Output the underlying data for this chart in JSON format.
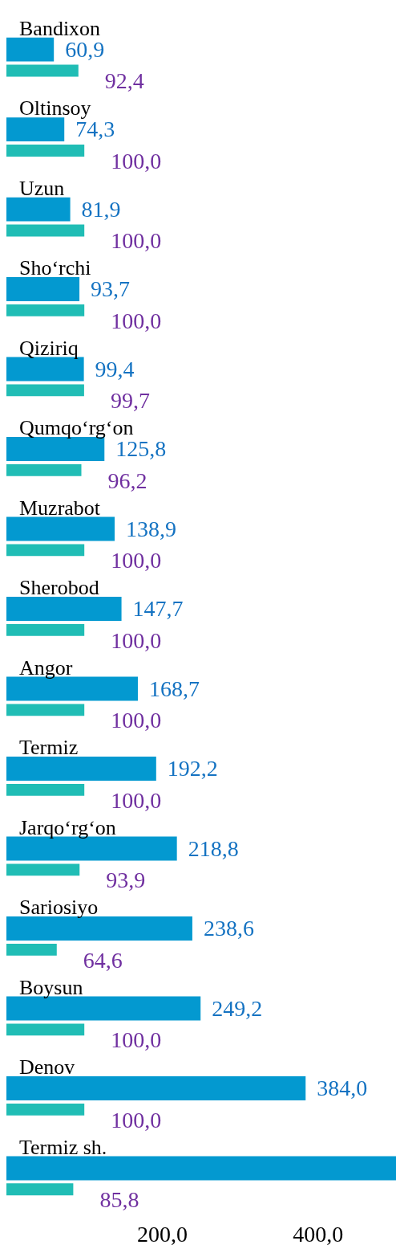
{
  "chart_data": {
    "type": "bar",
    "orientation": "horizontal",
    "categories": [
      "Bandixon",
      "Oltinsoy",
      "Uzun",
      "Sho‘rchi",
      "Qiziriq",
      "Qumqo‘rg‘on",
      "Muzrabot",
      "Sherobod",
      "Angor",
      "Termiz",
      "Jarqo‘rg‘on",
      "Sariosiyo",
      "Boysun",
      "Denov",
      "Termiz sh."
    ],
    "series": [
      {
        "color": "#0399d0",
        "values": [
          60.9,
          74.3,
          81.9,
          93.7,
          99.4,
          125.8,
          138.9,
          147.7,
          168.7,
          192.2,
          218.8,
          238.6,
          249.2,
          384.0,
          500
        ],
        "value_labels": [
          "60,9",
          "74,3",
          "81,9",
          "93,7",
          "99,4",
          "125,8",
          "138,9",
          "147,7",
          "168,7",
          "192,2",
          "218,8",
          "238,6",
          "249,2",
          "384,0",
          null
        ]
      },
      {
        "color": "#20bdb5",
        "values": [
          92.4,
          100.0,
          100.0,
          100.0,
          99.7,
          96.2,
          100.0,
          100.0,
          100.0,
          100.0,
          93.9,
          64.6,
          100.0,
          100.0,
          85.8
        ],
        "value_labels": [
          "92,4",
          "100,0",
          "100,0",
          "100,0",
          "99,7",
          "96,2",
          "100,0",
          "100,0",
          "100,0",
          "100,0",
          "93,9",
          "64,6",
          "100,0",
          "100,0",
          "85,8"
        ]
      }
    ],
    "xlim": [
      0,
      500
    ],
    "xticks": [
      {
        "value": 200,
        "label": "200,0"
      },
      {
        "value": 400,
        "label": "400,0"
      }
    ],
    "grid": false,
    "legend": false
  }
}
